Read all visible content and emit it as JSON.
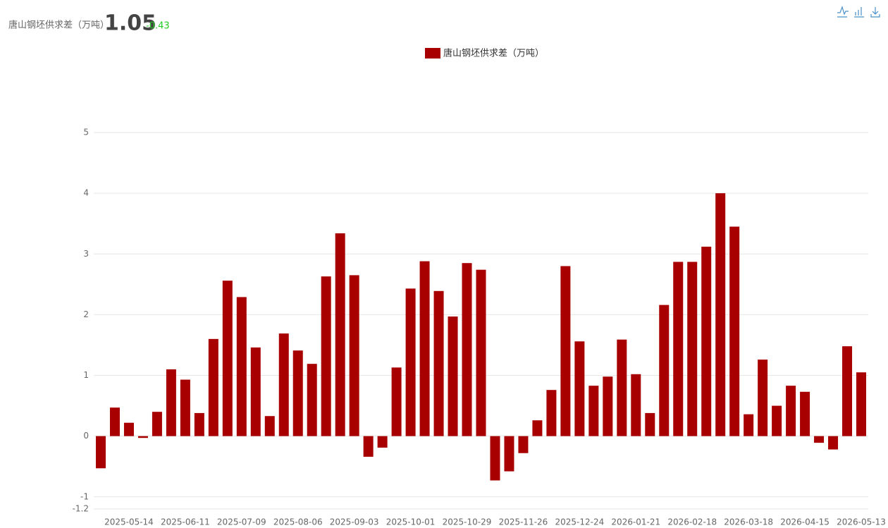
{
  "header": {
    "title": "唐山钢坯供求差（万吨）",
    "value": "1.05",
    "change": "-0.43"
  },
  "chart_data": {
    "type": "bar",
    "legend_position": "top",
    "series": [
      {
        "name": "唐山钢坯供求差（万吨）",
        "color": "#a80000",
        "values": [
          -0.53,
          0.47,
          0.22,
          -0.03,
          0.4,
          1.1,
          0.93,
          0.38,
          1.6,
          2.56,
          2.29,
          1.46,
          0.33,
          1.69,
          1.41,
          1.19,
          2.63,
          3.34,
          2.65,
          -0.34,
          -0.19,
          1.13,
          2.43,
          2.88,
          2.39,
          1.97,
          2.85,
          2.74,
          -0.73,
          -0.58,
          -0.28,
          0.26,
          0.76,
          2.8,
          1.56,
          0.83,
          0.98,
          1.59,
          1.02,
          0.38,
          2.16,
          2.87,
          2.87,
          3.12,
          4.0,
          3.45,
          0.36,
          1.26,
          0.5,
          0.83,
          0.73,
          -0.11,
          -0.22,
          1.48,
          1.05
        ]
      }
    ],
    "categories": [
      null,
      null,
      "2025-05-14",
      null,
      null,
      null,
      "2025-06-11",
      null,
      null,
      null,
      "2025-07-09",
      null,
      null,
      null,
      "2025-08-06",
      null,
      null,
      null,
      "2025-09-03",
      null,
      null,
      null,
      "2025-10-01",
      null,
      null,
      null,
      "2025-10-29",
      null,
      null,
      null,
      "2025-11-26",
      null,
      null,
      null,
      "2025-12-24",
      null,
      null,
      null,
      "2026-01-21",
      null,
      null,
      null,
      "2026-02-18",
      null,
      null,
      null,
      "2026-03-18",
      null,
      null,
      null,
      "2026-04-15",
      null,
      null,
      null,
      "2026-05-13"
    ],
    "ylim": [
      -1.2,
      5
    ],
    "yticks": [
      -1.2,
      -1,
      0,
      1,
      2,
      3,
      4,
      5
    ],
    "grid": true
  }
}
